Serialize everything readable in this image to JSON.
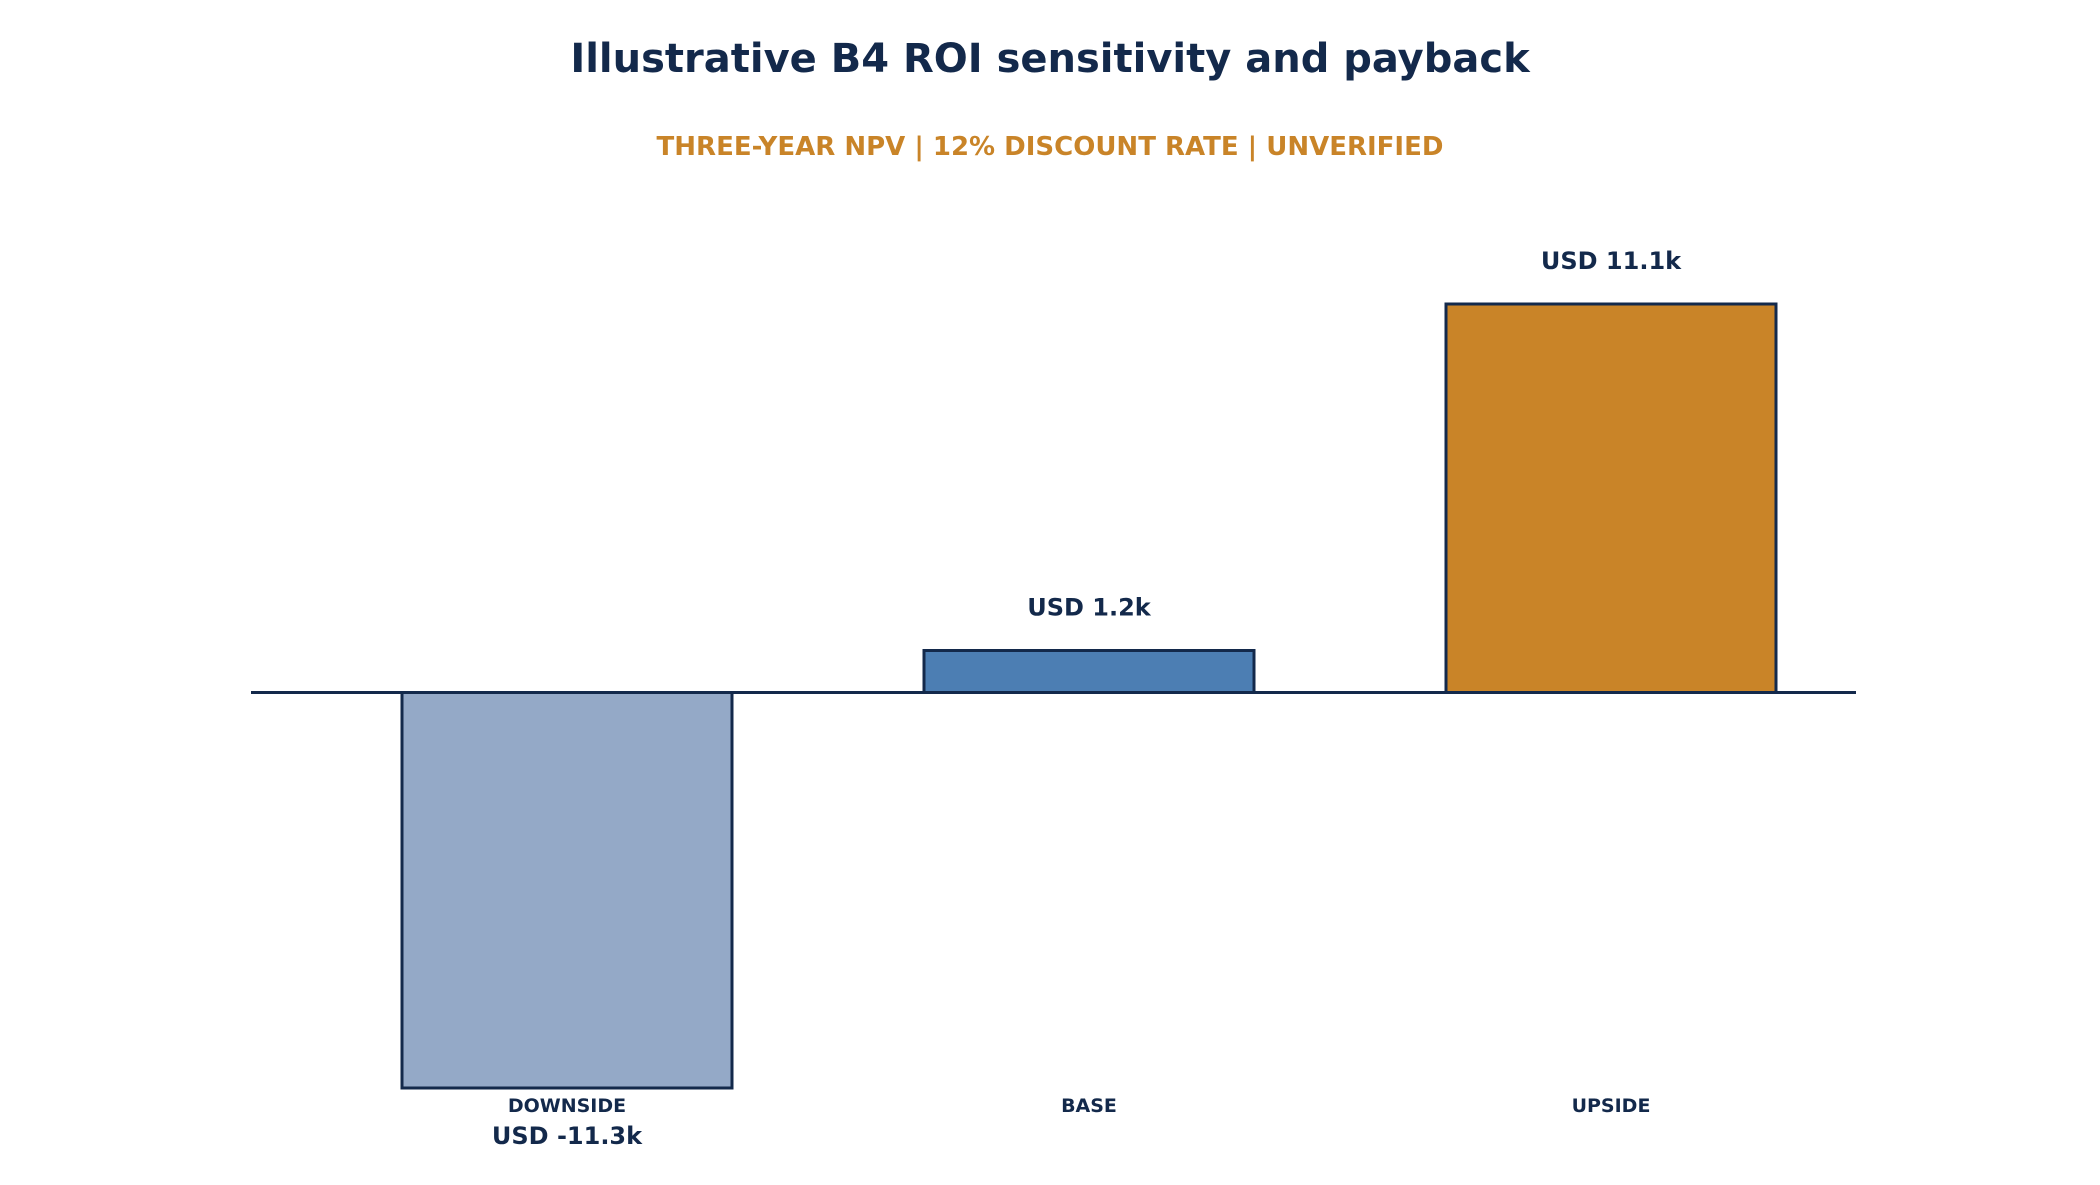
{
  "chart_data": {
    "type": "bar",
    "title": "Illustrative B4 ROI sensitivity and payback",
    "subtitle": "THREE-YEAR NPV | 12% DISCOUNT RATE | UNVERIFIED",
    "categories": [
      "DOWNSIDE",
      "BASE",
      "UPSIDE"
    ],
    "values": [
      -11.3,
      1.2,
      11.1
    ],
    "value_labels": [
      "USD -11.3k",
      "USD 1.2k",
      "USD 11.1k"
    ],
    "value_unit": "USD thousands",
    "bar_colors": [
      "#94a9c7",
      "#4c7eb3",
      "#c98428"
    ],
    "ylim": [
      -11.3,
      11.1
    ],
    "grid": false,
    "legend": "none",
    "xlabel": "",
    "ylabel": ""
  },
  "colors": {
    "title": "#13294b",
    "subtitle": "#c98428",
    "axis": "#13294b",
    "bar_outline": "#13294b"
  }
}
